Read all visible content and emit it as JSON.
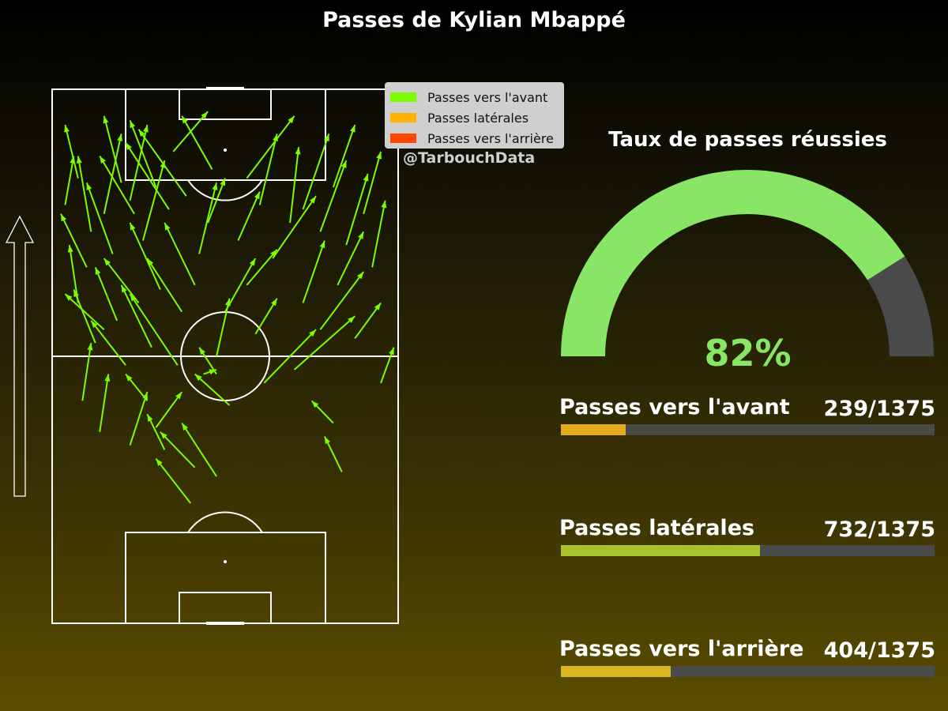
{
  "title": "Passes de Kylian Mbappé",
  "watermark": "@TarbouchData",
  "legend": [
    {
      "label": "Passes vers l'avant",
      "color": "#7cfc00"
    },
    {
      "label": "Passes latérales",
      "color": "#ffb300"
    },
    {
      "label": "Passes vers l'arrière",
      "color": "#ff4500"
    }
  ],
  "colors": {
    "pass_arrow": "#7cfc00",
    "gauge_success": "#88e565",
    "gauge_rest": "#4a4a4a",
    "bar_track": "#4a4a4a"
  },
  "gauge": {
    "title": "Taux de passes réussies",
    "value": 82,
    "value_label": "82%"
  },
  "bars": [
    {
      "label": "Passes vers l'avant",
      "value": 239,
      "total": 1375,
      "value_label": "239/1375",
      "color": "#e5ac1e"
    },
    {
      "label": "Passes latérales",
      "value": 732,
      "total": 1375,
      "value_label": "732/1375",
      "color": "#a9c22e"
    },
    {
      "label": "Passes vers l'arrière",
      "value": 404,
      "total": 1375,
      "value_label": "404/1375",
      "color": "#d9b81f"
    }
  ],
  "chart_data": {
    "type": "scatter",
    "title": "Passes de Kylian Mbappé",
    "pitch": {
      "length": 120,
      "width": 80
    },
    "direction_of_play": "up",
    "passes": [
      {
        "x1": 28,
        "y1": 106,
        "x2": 36,
        "y2": 115
      },
      {
        "x1": 45,
        "y1": 100,
        "x2": 56,
        "y2": 114
      },
      {
        "x1": 18,
        "y1": 95,
        "x2": 22,
        "y2": 112
      },
      {
        "x1": 12,
        "y1": 92,
        "x2": 16,
        "y2": 110
      },
      {
        "x1": 9,
        "y1": 88,
        "x2": 6,
        "y2": 105
      },
      {
        "x1": 21,
        "y1": 86,
        "x2": 26,
        "y2": 104
      },
      {
        "x1": 34,
        "y1": 83,
        "x2": 38,
        "y2": 99
      },
      {
        "x1": 51,
        "y1": 82,
        "x2": 61,
        "y2": 96
      },
      {
        "x1": 62,
        "y1": 88,
        "x2": 68,
        "y2": 104
      },
      {
        "x1": 68,
        "y1": 85,
        "x2": 73,
        "y2": 101
      },
      {
        "x1": 58,
        "y1": 93,
        "x2": 64,
        "y2": 110
      },
      {
        "x1": 65,
        "y1": 98,
        "x2": 70,
        "y2": 112
      },
      {
        "x1": 48,
        "y1": 94,
        "x2": 52,
        "y2": 110
      },
      {
        "x1": 55,
        "y1": 90,
        "x2": 57,
        "y2": 107
      },
      {
        "x1": 72,
        "y1": 92,
        "x2": 76,
        "y2": 106
      },
      {
        "x1": 74,
        "y1": 80,
        "x2": 77,
        "y2": 95
      },
      {
        "x1": 66,
        "y1": 76,
        "x2": 72,
        "y2": 88
      },
      {
        "x1": 58,
        "y1": 72,
        "x2": 63,
        "y2": 86
      },
      {
        "x1": 40,
        "y1": 70,
        "x2": 47,
        "y2": 82
      },
      {
        "x1": 36,
        "y1": 90,
        "x2": 40,
        "y2": 100
      },
      {
        "x1": 30,
        "y1": 70,
        "x2": 22,
        "y2": 82
      },
      {
        "x1": 25,
        "y1": 75,
        "x2": 18,
        "y2": 90
      },
      {
        "x1": 15,
        "y1": 68,
        "x2": 10,
        "y2": 80
      },
      {
        "x1": 6,
        "y1": 72,
        "x2": 4,
        "y2": 85
      },
      {
        "x1": 10,
        "y1": 63,
        "x2": 5,
        "y2": 75
      },
      {
        "x1": 23,
        "y1": 62,
        "x2": 16,
        "y2": 76
      },
      {
        "x1": 19,
        "y1": 92,
        "x2": 11,
        "y2": 105
      },
      {
        "x1": 27,
        "y1": 93,
        "x2": 17,
        "y2": 108
      },
      {
        "x1": 14,
        "y1": 83,
        "x2": 8,
        "y2": 99
      },
      {
        "x1": 31,
        "y1": 96,
        "x2": 20,
        "y2": 111
      },
      {
        "x1": 17,
        "y1": 58,
        "x2": 9,
        "y2": 68
      },
      {
        "x1": 29,
        "y1": 58,
        "x2": 18,
        "y2": 74
      },
      {
        "x1": 33,
        "y1": 76,
        "x2": 26,
        "y2": 90
      },
      {
        "x1": 24,
        "y1": 98,
        "x2": 18,
        "y2": 113
      },
      {
        "x1": 37,
        "y1": 102,
        "x2": 30,
        "y2": 114
      },
      {
        "x1": 6,
        "y1": 100,
        "x2": 3,
        "y2": 112
      },
      {
        "x1": 38,
        "y1": 60,
        "x2": 41,
        "y2": 73
      },
      {
        "x1": 49,
        "y1": 54,
        "x2": 61,
        "y2": 66
      },
      {
        "x1": 56,
        "y1": 57,
        "x2": 70,
        "y2": 69
      },
      {
        "x1": 70,
        "y1": 64,
        "x2": 76,
        "y2": 72
      },
      {
        "x1": 47,
        "y1": 65,
        "x2": 52,
        "y2": 73
      },
      {
        "x1": 62,
        "y1": 66,
        "x2": 72,
        "y2": 79
      },
      {
        "x1": 45,
        "y1": 76,
        "x2": 52,
        "y2": 84
      },
      {
        "x1": 43,
        "y1": 86,
        "x2": 48,
        "y2": 97
      },
      {
        "x1": 38,
        "y1": 56,
        "x2": 34,
        "y2": 62
      },
      {
        "x1": 24,
        "y1": 44,
        "x2": 30,
        "y2": 52
      },
      {
        "x1": 18,
        "y1": 40,
        "x2": 22,
        "y2": 52
      },
      {
        "x1": 33,
        "y1": 35,
        "x2": 25,
        "y2": 43
      },
      {
        "x1": 38,
        "y1": 33,
        "x2": 30,
        "y2": 45
      },
      {
        "x1": 22,
        "y1": 50,
        "x2": 17,
        "y2": 56
      },
      {
        "x1": 32,
        "y1": 27,
        "x2": 24,
        "y2": 37
      },
      {
        "x1": 11,
        "y1": 43,
        "x2": 13,
        "y2": 56
      },
      {
        "x1": 65,
        "y1": 45,
        "x2": 60,
        "y2": 50
      },
      {
        "x1": 67,
        "y1": 34,
        "x2": 63,
        "y2": 42
      },
      {
        "x1": 76,
        "y1": 54,
        "x2": 79,
        "y2": 62
      },
      {
        "x1": 41,
        "y1": 49,
        "x2": 33,
        "y2": 56
      },
      {
        "x1": 35,
        "y1": 56,
        "x2": 38,
        "y2": 57
      },
      {
        "x1": 26,
        "y1": 39,
        "x2": 22,
        "y2": 47
      },
      {
        "x1": 7,
        "y1": 50,
        "x2": 9,
        "y2": 63
      },
      {
        "x1": 12,
        "y1": 66,
        "x2": 3,
        "y2": 74
      },
      {
        "x1": 20,
        "y1": 72,
        "x2": 12,
        "y2": 82
      },
      {
        "x1": 8,
        "y1": 80,
        "x2": 2,
        "y2": 92
      },
      {
        "x1": 3,
        "y1": 94,
        "x2": 5,
        "y2": 105
      },
      {
        "x1": 16,
        "y1": 99,
        "x2": 12,
        "y2": 114
      }
    ]
  }
}
